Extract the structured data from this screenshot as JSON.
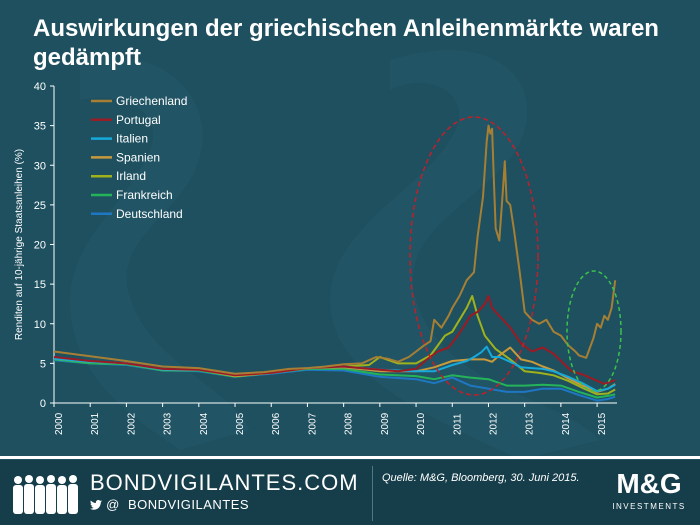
{
  "title": "Auswirkungen der griechischen Anleihenmärkte waren gedämpft",
  "footer": {
    "brand": "BONDVIGILANTES.COM",
    "twitter_at": "@",
    "twitter_handle": "BONDVIGILANTES",
    "source": "Quelle: M&G, Bloomberg, 30. Juni 2015.",
    "logo": "M&G",
    "logo_sub": "INVESTMENTS"
  },
  "colors": {
    "background": "#1e5060",
    "footer": "#163e4a",
    "greece": "#a67f34",
    "portugal": "#9b1b24",
    "italy": "#16a9d9",
    "spain": "#c99a3c",
    "ireland": "#9fb21c",
    "france": "#25b35a",
    "germany": "#1f77c4",
    "highlight_red": "#c0202a",
    "highlight_green": "#3cc24a"
  },
  "chart_data": {
    "type": "line",
    "title": "Auswirkungen der griechischen Anleihenmärkte waren gedämpft",
    "xlabel": "",
    "ylabel": "Renditen auf 10-jährige Staatsanleihen (%)",
    "ylim": [
      0,
      40
    ],
    "xlim": [
      2000,
      2015.55
    ],
    "yticks": [
      0,
      5,
      10,
      15,
      20,
      25,
      30,
      35,
      40
    ],
    "xticks": [
      "2000",
      "2001",
      "2002",
      "2003",
      "2004",
      "2005",
      "2006",
      "2007",
      "2008",
      "2009",
      "2010",
      "2011",
      "2012",
      "2013",
      "2014",
      "2015"
    ],
    "legend_position": "top-left",
    "series": [
      {
        "name": "Griechenland",
        "color": "#a67f34",
        "x": [
          2000,
          2000.5,
          2001,
          2001.5,
          2002,
          2003,
          2004,
          2005,
          2005.8,
          2006.5,
          2007,
          2007.5,
          2008,
          2008.5,
          2008.9,
          2009.2,
          2009.5,
          2009.8,
          2010.0,
          2010.2,
          2010.4,
          2010.5,
          2010.7,
          2010.9,
          2011.0,
          2011.2,
          2011.4,
          2011.5,
          2011.6,
          2011.7,
          2011.85,
          2011.95,
          2012.0,
          2012.05,
          2012.1,
          2012.15,
          2012.2,
          2012.3,
          2012.4,
          2012.45,
          2012.5,
          2012.6,
          2012.7,
          2012.85,
          2013.0,
          2013.2,
          2013.4,
          2013.6,
          2013.8,
          2014.0,
          2014.2,
          2014.4,
          2014.5,
          2014.7,
          2014.9,
          2015.0,
          2015.1,
          2015.2,
          2015.3,
          2015.4,
          2015.5
        ],
        "values": [
          6.5,
          6.2,
          5.9,
          5.6,
          5.3,
          4.6,
          4.4,
          3.7,
          3.9,
          4.3,
          4.4,
          4.6,
          4.9,
          5.0,
          5.8,
          5.6,
          5.2,
          5.8,
          6.5,
          7.2,
          7.8,
          10.5,
          9.5,
          11.0,
          12.0,
          13.5,
          15.5,
          16.0,
          16.5,
          21.0,
          26.0,
          33.0,
          35.0,
          34.0,
          34.6,
          28.0,
          22.0,
          20.5,
          27.0,
          30.5,
          25.5,
          25.0,
          22.0,
          17.0,
          11.5,
          10.5,
          10.0,
          10.5,
          9.0,
          8.5,
          7.3,
          6.5,
          6.0,
          5.7,
          8.2,
          10.0,
          9.5,
          11.0,
          10.5,
          12.0,
          15.5
        ]
      },
      {
        "name": "Portugal",
        "color": "#9b1b24",
        "x": [
          2000,
          2001,
          2002,
          2003,
          2004,
          2005,
          2006,
          2007,
          2008,
          2009,
          2009.5,
          2010.0,
          2010.3,
          2010.6,
          2010.9,
          2011.1,
          2011.3,
          2011.5,
          2011.7,
          2011.9,
          2012.0,
          2012.1,
          2012.3,
          2012.6,
          2012.9,
          2013.2,
          2013.5,
          2013.8,
          2014.0,
          2014.3,
          2014.6,
          2015.0,
          2015.2,
          2015.5
        ],
        "values": [
          5.8,
          5.3,
          5.0,
          4.3,
          4.2,
          3.5,
          3.8,
          4.4,
          4.6,
          4.2,
          4.0,
          4.3,
          5.5,
          6.5,
          7.0,
          8.2,
          9.5,
          11.0,
          11.5,
          12.5,
          13.5,
          12.0,
          11.0,
          9.5,
          7.5,
          6.5,
          7.0,
          6.2,
          5.3,
          4.0,
          3.6,
          2.8,
          2.4,
          2.9
        ]
      },
      {
        "name": "Italien",
        "color": "#16a9d9",
        "x": [
          2000,
          2001,
          2002,
          2003,
          2004,
          2005,
          2006,
          2007,
          2008,
          2009,
          2010,
          2010.5,
          2011.0,
          2011.4,
          2011.6,
          2011.8,
          2011.95,
          2012.1,
          2012.3,
          2012.6,
          2012.9,
          2013.2,
          2013.5,
          2013.8,
          2014.2,
          2014.6,
          2015.0,
          2015.3,
          2015.5
        ],
        "values": [
          5.6,
          5.2,
          5.0,
          4.2,
          4.2,
          3.5,
          3.9,
          4.4,
          4.6,
          4.2,
          4.0,
          4.0,
          4.8,
          5.3,
          5.8,
          6.4,
          7.1,
          5.8,
          5.8,
          5.2,
          4.5,
          4.4,
          4.3,
          4.0,
          3.3,
          2.5,
          1.5,
          1.8,
          2.3
        ]
      },
      {
        "name": "Spanien",
        "color": "#c99a3c",
        "x": [
          2000,
          2001,
          2002,
          2003,
          2004,
          2005,
          2006,
          2007,
          2008,
          2009,
          2010,
          2010.5,
          2011.0,
          2011.5,
          2011.9,
          2012.1,
          2012.3,
          2012.6,
          2012.9,
          2013.2,
          2013.5,
          2013.8,
          2014.2,
          2014.6,
          2015.0,
          2015.3,
          2015.5
        ],
        "values": [
          5.6,
          5.2,
          5.0,
          4.2,
          4.2,
          3.4,
          3.8,
          4.4,
          4.5,
          4.0,
          4.0,
          4.5,
          5.3,
          5.5,
          5.5,
          5.2,
          6.0,
          7.0,
          5.5,
          5.2,
          4.6,
          4.1,
          3.1,
          2.2,
          1.4,
          1.8,
          2.4
        ]
      },
      {
        "name": "Irland",
        "color": "#9fb21c",
        "x": [
          2000,
          2001,
          2002,
          2003,
          2004,
          2005,
          2006,
          2007,
          2008,
          2008.7,
          2009.0,
          2009.5,
          2010.0,
          2010.4,
          2010.8,
          2011.0,
          2011.2,
          2011.4,
          2011.55,
          2011.7,
          2011.9,
          2012.2,
          2012.6,
          2013.0,
          2013.4,
          2013.8,
          2014.2,
          2014.6,
          2015.0,
          2015.3,
          2015.5
        ],
        "values": [
          5.6,
          5.2,
          5.0,
          4.2,
          4.2,
          3.4,
          3.8,
          4.4,
          4.6,
          4.8,
          5.8,
          5.0,
          5.0,
          6.0,
          8.5,
          9.0,
          10.5,
          12.0,
          13.5,
          11.0,
          8.5,
          6.8,
          5.5,
          4.0,
          3.8,
          3.5,
          2.8,
          1.9,
          1.1,
          1.2,
          1.7
        ]
      },
      {
        "name": "Frankreich",
        "color": "#25b35a",
        "x": [
          2000,
          2001,
          2002,
          2003,
          2004,
          2005,
          2006,
          2007,
          2008,
          2009,
          2010,
          2010.5,
          2011,
          2011.5,
          2012,
          2012.5,
          2013,
          2013.5,
          2014,
          2014.5,
          2015,
          2015.3,
          2015.5
        ],
        "values": [
          5.5,
          5.0,
          4.9,
          4.1,
          4.1,
          3.3,
          3.8,
          4.3,
          4.3,
          3.6,
          3.4,
          3.0,
          3.5,
          3.2,
          3.0,
          2.2,
          2.2,
          2.3,
          2.2,
          1.4,
          0.7,
          0.9,
          1.1
        ]
      },
      {
        "name": "Deutschland",
        "color": "#1f77c4",
        "x": [
          2000,
          2001,
          2002,
          2003,
          2004,
          2005,
          2006,
          2007,
          2008,
          2009,
          2010,
          2010.5,
          2011,
          2011.5,
          2012,
          2012.5,
          2013,
          2013.5,
          2014,
          2014.5,
          2015,
          2015.3,
          2015.5
        ],
        "values": [
          5.4,
          5.0,
          4.8,
          4.1,
          4.0,
          3.3,
          3.7,
          4.2,
          4.1,
          3.3,
          3.0,
          2.5,
          3.2,
          2.2,
          1.8,
          1.4,
          1.4,
          1.8,
          1.8,
          1.0,
          0.3,
          0.5,
          0.8
        ]
      }
    ]
  }
}
